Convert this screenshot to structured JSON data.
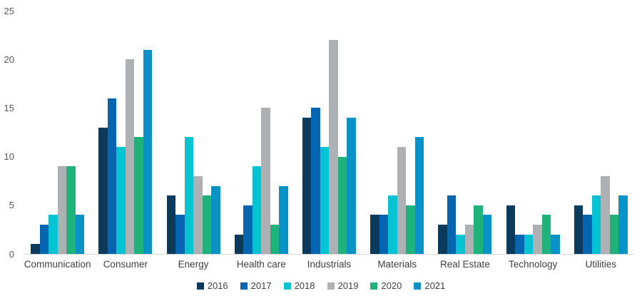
{
  "chart_data": {
    "type": "bar",
    "categories": [
      "Communication",
      "Consumer",
      "Energy",
      "Health care",
      "Industrials",
      "Materials",
      "Real Estate",
      "Technology",
      "Utilities"
    ],
    "series": [
      {
        "name": "2016",
        "color": "#0b3a5d",
        "values": [
          1,
          13,
          6,
          2,
          14,
          4,
          3,
          5,
          5
        ]
      },
      {
        "name": "2017",
        "color": "#0565b0",
        "values": [
          3,
          16,
          4,
          5,
          15,
          4,
          6,
          2,
          4
        ]
      },
      {
        "name": "2018",
        "color": "#04c4d4",
        "values": [
          4,
          11,
          12,
          9,
          11,
          6,
          2,
          2,
          6
        ]
      },
      {
        "name": "2019",
        "color": "#aeb1b4",
        "values": [
          9,
          20,
          8,
          15,
          22,
          11,
          3,
          3,
          8
        ]
      },
      {
        "name": "2020",
        "color": "#1fb27a",
        "values": [
          9,
          12,
          6,
          3,
          10,
          5,
          5,
          4,
          4
        ]
      },
      {
        "name": "2021",
        "color": "#0892c5",
        "values": [
          4,
          21,
          7,
          7,
          14,
          12,
          4,
          2,
          6
        ]
      }
    ],
    "ylim": [
      0,
      25
    ],
    "yticks": [
      0,
      5,
      10,
      15,
      20,
      25
    ],
    "grid": false,
    "legend_position": "bottom"
  },
  "colors": {
    "background": "#ffffff",
    "axis_line": "#d9d9d9",
    "tick_label": "#595959",
    "category_label": "#404040",
    "legend_label": "#404040"
  }
}
